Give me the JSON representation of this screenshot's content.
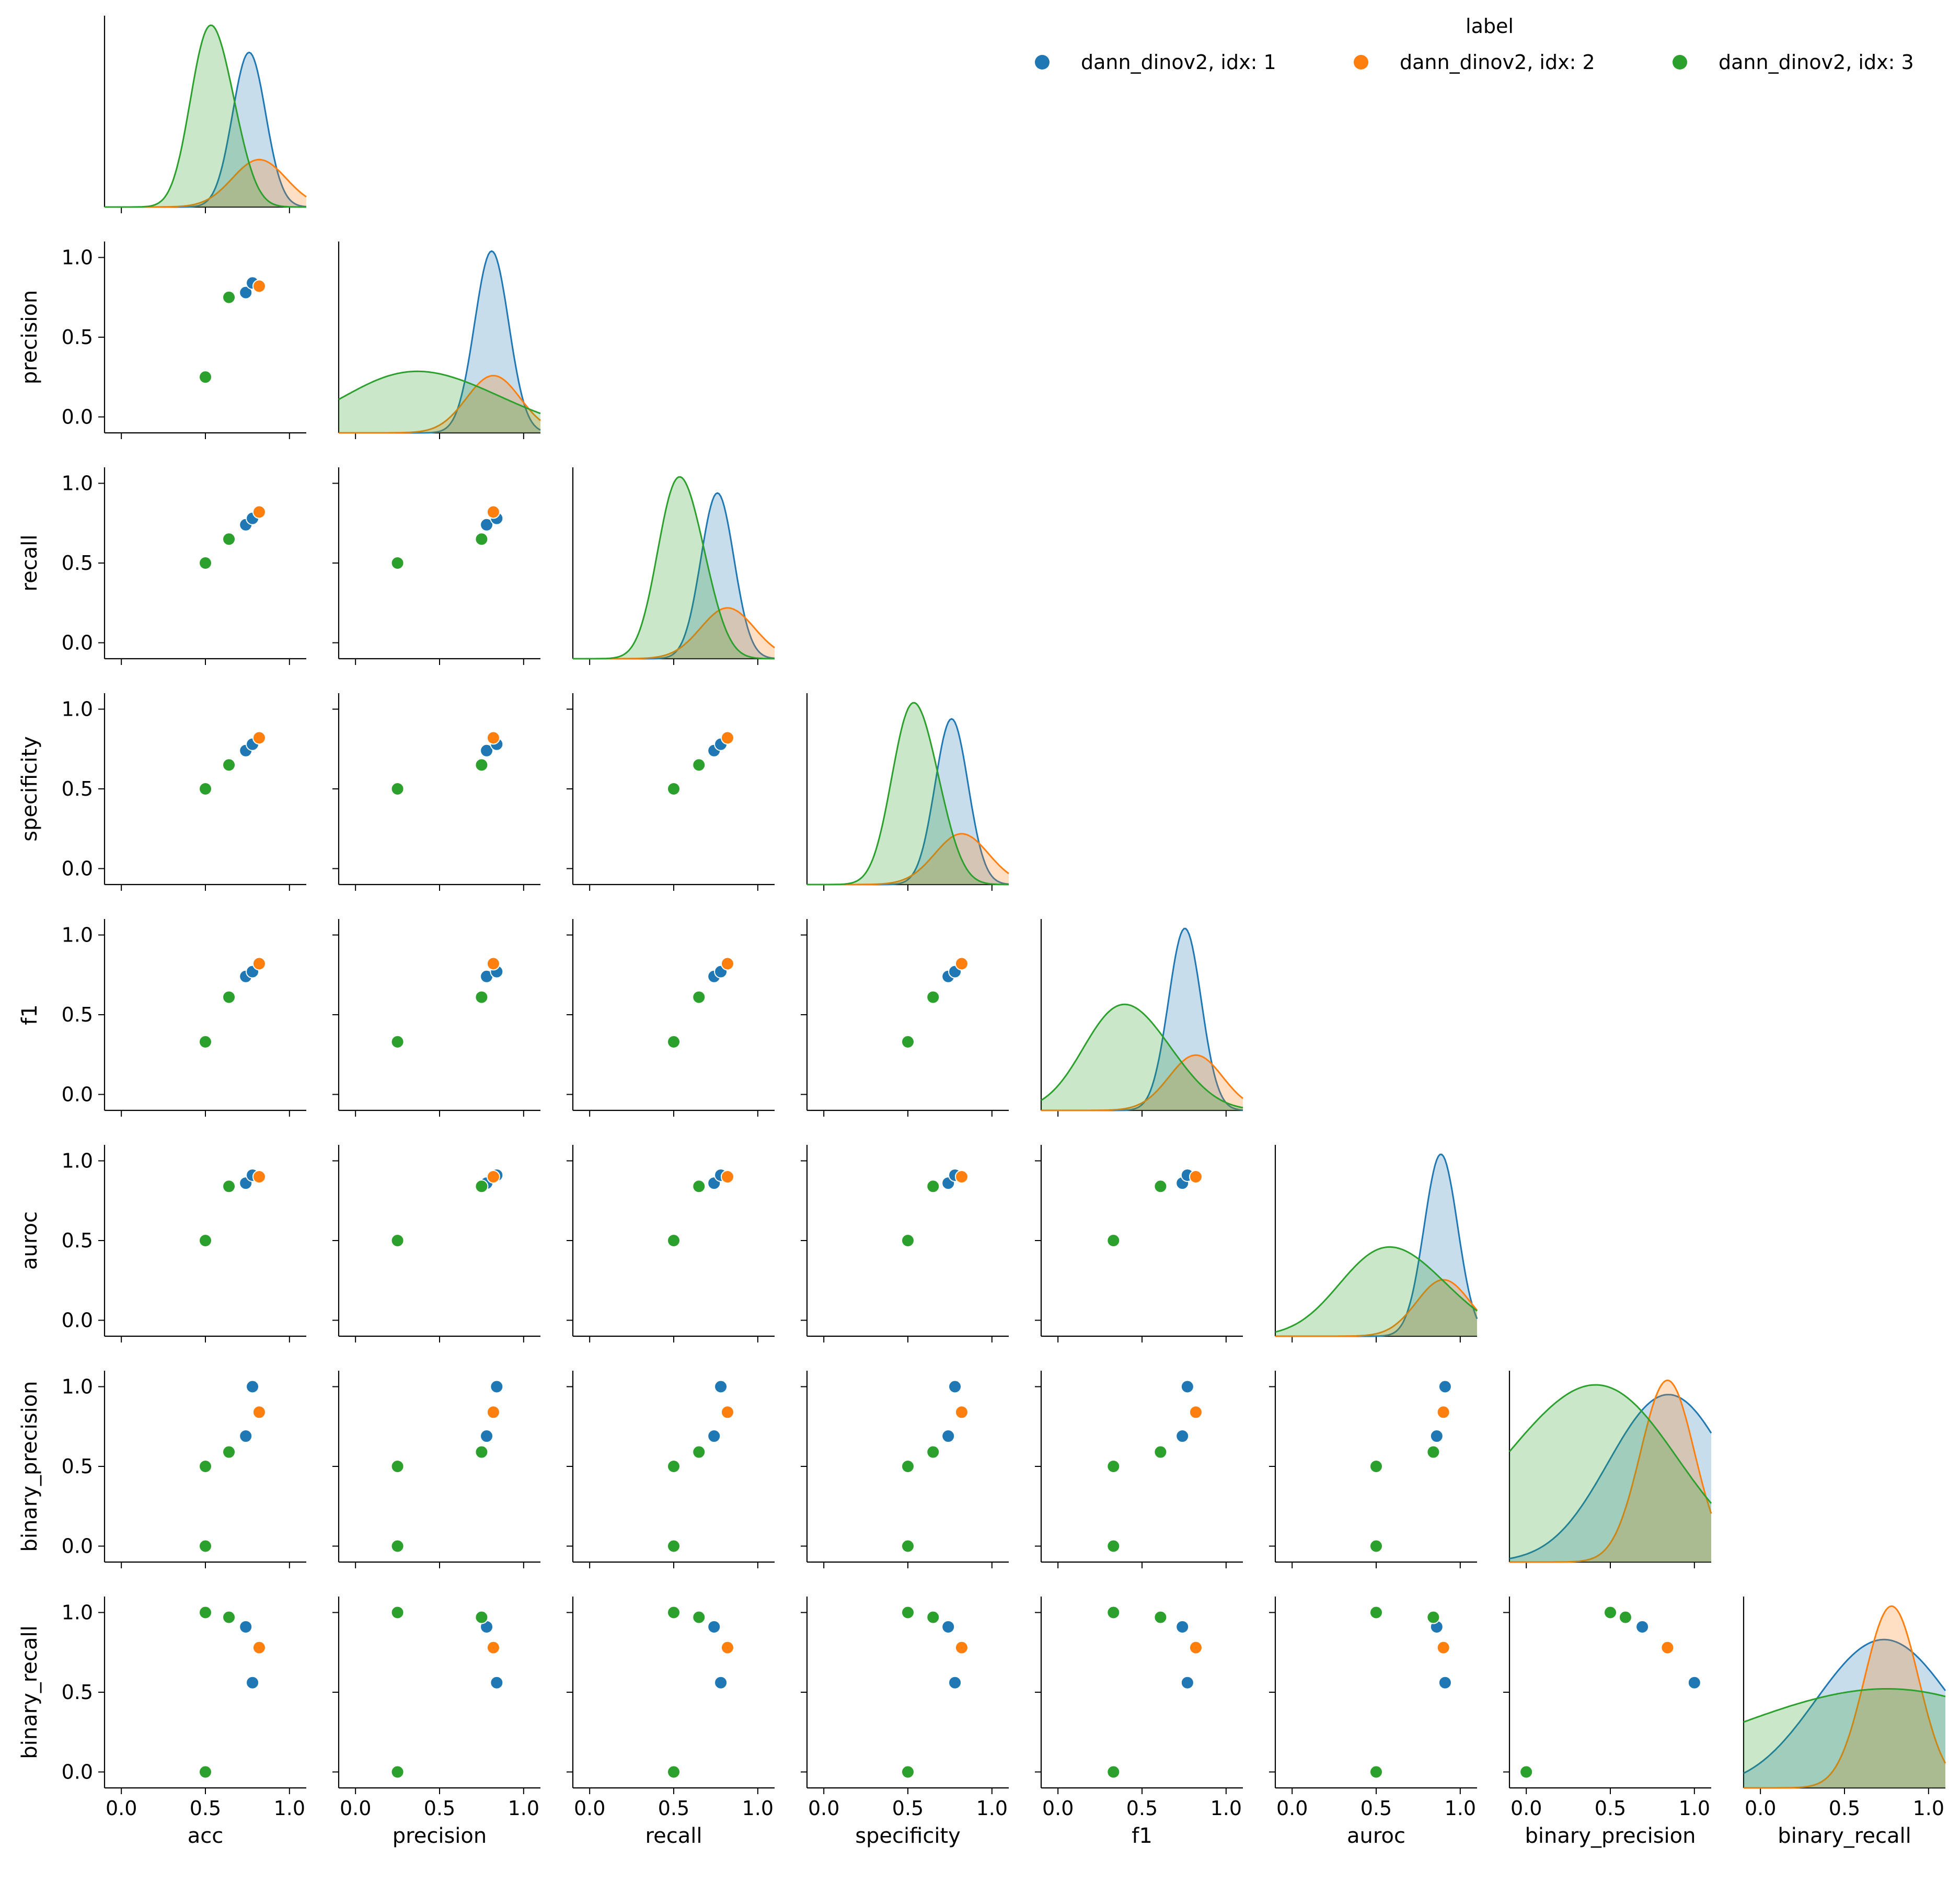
{
  "chart_data": {
    "type": "scatter",
    "title": "",
    "variables": [
      "acc",
      "precision",
      "recall",
      "specificity",
      "f1",
      "auroc",
      "binary_precision",
      "binary_recall"
    ],
    "axis_range": [
      -0.1,
      1.1
    ],
    "ticks": [
      0.0,
      0.5,
      1.0
    ],
    "tick_labels": [
      "0.0",
      "0.5",
      "1.0"
    ],
    "legend": {
      "title": "label",
      "placement": "top-right",
      "entries": [
        {
          "label": "dann_dinov2, idx: 1",
          "color": "#1f77b4"
        },
        {
          "label": "dann_dinov2, idx: 2",
          "color": "#ff7f0e"
        },
        {
          "label": "dann_dinov2, idx: 3",
          "color": "#2ca02c"
        }
      ]
    },
    "diagonal": "kde",
    "series": [
      {
        "name": "dann_dinov2, idx: 1",
        "color": "#1f77b4",
        "points": [
          {
            "acc": 0.74,
            "precision": 0.78,
            "recall": 0.74,
            "specificity": 0.74,
            "f1": 0.74,
            "auroc": 0.86,
            "binary_precision": 0.69,
            "binary_recall": 0.91
          },
          {
            "acc": 0.78,
            "precision": 0.84,
            "recall": 0.78,
            "specificity": 0.78,
            "f1": 0.77,
            "auroc": 0.91,
            "binary_precision": 1.0,
            "binary_recall": 0.56
          }
        ]
      },
      {
        "name": "dann_dinov2, idx: 2",
        "color": "#ff7f0e",
        "points": [
          {
            "acc": 0.82,
            "precision": 0.82,
            "recall": 0.82,
            "specificity": 0.82,
            "f1": 0.82,
            "auroc": 0.9,
            "binary_precision": 0.84,
            "binary_recall": 0.78
          }
        ]
      },
      {
        "name": "dann_dinov2, idx: 3",
        "color": "#2ca02c",
        "points": [
          {
            "acc": 0.5,
            "precision": 0.25,
            "recall": 0.5,
            "specificity": 0.5,
            "f1": 0.33,
            "auroc": 0.5,
            "binary_precision": 0.0,
            "binary_recall": 0.0
          },
          {
            "acc": 0.5,
            "precision": 0.25,
            "recall": 0.5,
            "specificity": 0.5,
            "f1": 0.33,
            "auroc": 0.5,
            "binary_precision": 0.5,
            "binary_recall": 1.0
          },
          {
            "acc": 0.64,
            "precision": 0.75,
            "recall": 0.65,
            "specificity": 0.65,
            "f1": 0.61,
            "auroc": 0.84,
            "binary_precision": 0.59,
            "binary_recall": 0.97
          }
        ]
      }
    ]
  }
}
